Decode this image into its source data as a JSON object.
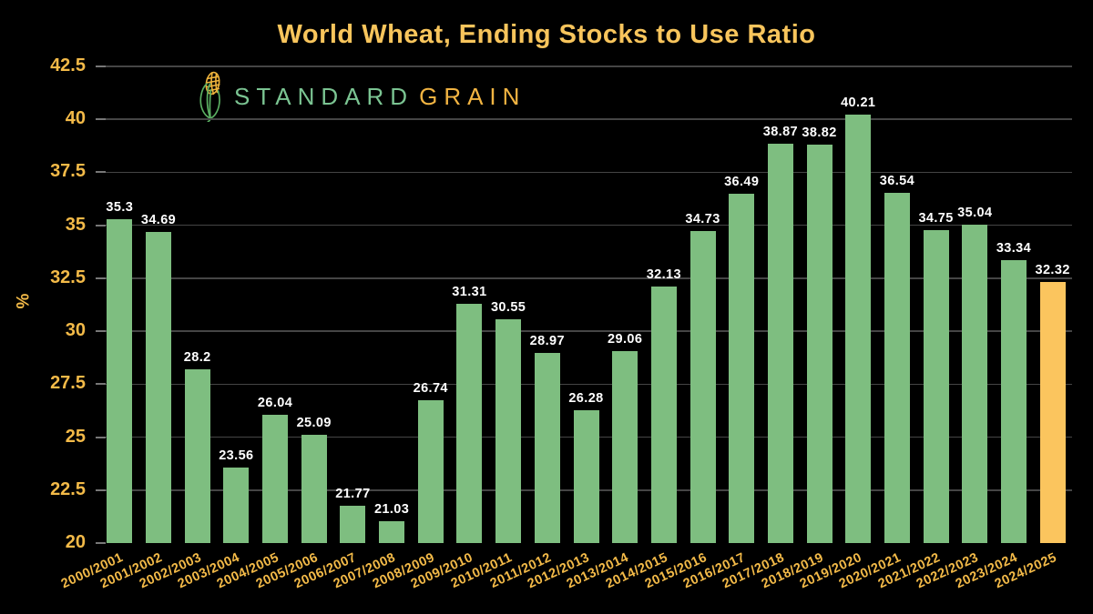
{
  "title": "World Wheat, Ending Stocks to Use Ratio",
  "logo": {
    "icon": "corn-icon",
    "brand_part1": "STANDARD",
    "brand_part2": "GRAIN"
  },
  "colors": {
    "background": "#000000",
    "title": "#F8C55C",
    "axis_labels": "#F3BA48",
    "bar_green": "#7EBE80",
    "bar_highlight_orange": "#FBC55E",
    "gridline": "#454545",
    "tick_mark": "#777777",
    "value_label": "#FFFFFF",
    "logo_green": "#7BC492",
    "logo_orange": "#F2B442"
  },
  "chart_data": {
    "type": "bar",
    "title": "World Wheat, Ending Stocks to Use Ratio",
    "xlabel": "",
    "ylabel": "%",
    "ylim": [
      20,
      42.5
    ],
    "yticks": [
      20,
      22.5,
      25,
      27.5,
      30,
      32.5,
      35,
      37.5,
      40,
      42.5
    ],
    "grid": true,
    "legend": "none",
    "categories": [
      "2000/2001",
      "2001/2002",
      "2002/2003",
      "2003/2004",
      "2004/2005",
      "2005/2006",
      "2006/2007",
      "2007/2008",
      "2008/2009",
      "2009/2010",
      "2010/2011",
      "2011/2012",
      "2012/2013",
      "2013/2014",
      "2014/2015",
      "2015/2016",
      "2016/2017",
      "2017/2018",
      "2018/2019",
      "2019/2020",
      "2020/2021",
      "2021/2022",
      "2022/2023",
      "2023/2024",
      "2024/2025"
    ],
    "values": [
      35.3,
      34.69,
      28.2,
      23.56,
      26.04,
      25.09,
      21.77,
      21.03,
      26.74,
      31.31,
      30.55,
      28.97,
      26.28,
      29.06,
      32.13,
      34.73,
      36.49,
      38.87,
      38.82,
      40.21,
      36.54,
      34.75,
      35.04,
      33.34,
      32.32
    ],
    "value_labels": [
      "35.3",
      "34.69",
      "28.2",
      "23.56",
      "26.04",
      "25.09",
      "21.77",
      "21.03",
      "26.74",
      "31.31",
      "30.55",
      "28.97",
      "26.28",
      "29.06",
      "32.13",
      "34.73",
      "36.49",
      "38.87",
      "38.82",
      "40.21",
      "36.54",
      "34.75",
      "35.04",
      "33.34",
      "32.32"
    ],
    "highlight_index": 24
  }
}
